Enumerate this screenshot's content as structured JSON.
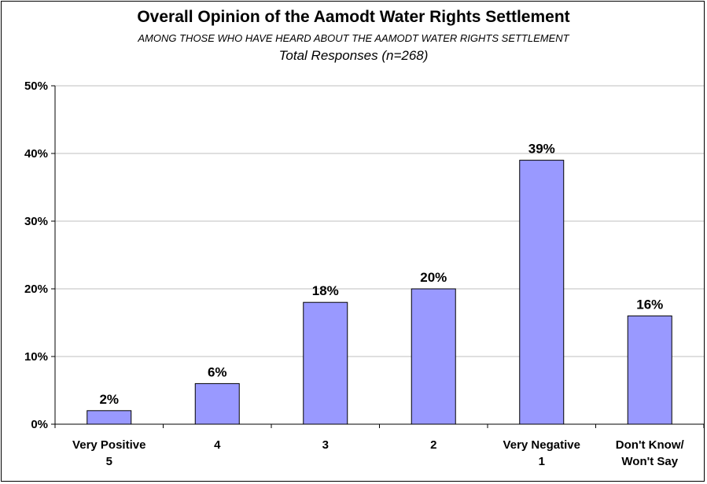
{
  "chart_data": {
    "type": "bar",
    "title": "Overall Opinion of the Aamodt Water Rights Settlement",
    "subtitle": "AMONG THOSE WHO HAVE HEARD ABOUT THE AAMODT WATER RIGHTS SETTLEMENT",
    "subtitle2": "Total Responses (n=268)",
    "categories": [
      [
        "Very Positive",
        "5"
      ],
      [
        "4"
      ],
      [
        "3"
      ],
      [
        "2"
      ],
      [
        "Very Negative",
        "1"
      ],
      [
        "Don't Know/",
        "Won't Say"
      ]
    ],
    "values": [
      2,
      6,
      18,
      20,
      39,
      16
    ],
    "data_labels": [
      "2%",
      "6%",
      "18%",
      "20%",
      "39%",
      "16%"
    ],
    "ylim": [
      0,
      50
    ],
    "yticks": [
      0,
      10,
      20,
      30,
      40,
      50
    ],
    "ytick_labels": [
      "0%",
      "10%",
      "20%",
      "30%",
      "40%",
      "50%"
    ],
    "grid": true,
    "xlabel": "",
    "ylabel": "",
    "bar_color": "#9999ff"
  }
}
